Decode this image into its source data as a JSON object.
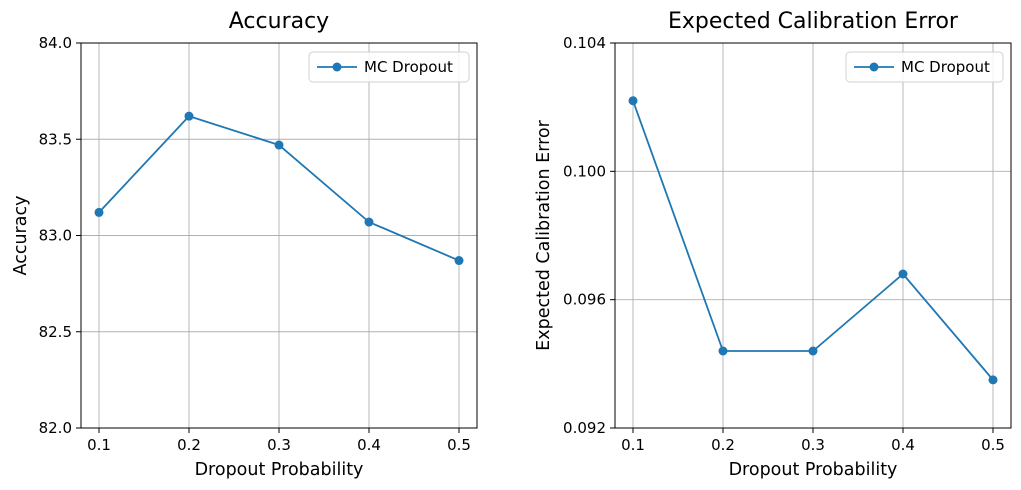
{
  "chart_data": [
    {
      "type": "line",
      "title": "Accuracy",
      "xlabel": "Dropout Probability",
      "ylabel": "Accuracy",
      "x": [
        0.1,
        0.2,
        0.3,
        0.4,
        0.5
      ],
      "xticks": [
        "0.1",
        "0.2",
        "0.3",
        "0.4",
        "0.5"
      ],
      "xlim": [
        0.08,
        0.52
      ],
      "ylim": [
        82.0,
        84.0
      ],
      "yticks": [
        "82.0",
        "82.5",
        "83.0",
        "83.5",
        "84.0"
      ],
      "ytick_values": [
        82.0,
        82.5,
        83.0,
        83.5,
        84.0
      ],
      "grid": true,
      "legend_position": "top-right",
      "series": [
        {
          "name": "MC Dropout",
          "color": "#1f77b4",
          "values": [
            83.12,
            83.62,
            83.47,
            83.07,
            82.87
          ]
        }
      ]
    },
    {
      "type": "line",
      "title": "Expected Calibration Error",
      "xlabel": "Dropout Probability",
      "ylabel": "Expected Calibration Error",
      "x": [
        0.1,
        0.2,
        0.3,
        0.4,
        0.5
      ],
      "xticks": [
        "0.1",
        "0.2",
        "0.3",
        "0.4",
        "0.5"
      ],
      "xlim": [
        0.08,
        0.52
      ],
      "ylim": [
        0.092,
        0.104
      ],
      "yticks": [
        "0.092",
        "0.096",
        "0.100",
        "0.104"
      ],
      "ytick_values": [
        0.092,
        0.096,
        0.1,
        0.104
      ],
      "grid": true,
      "legend_position": "top-right",
      "series": [
        {
          "name": "MC Dropout",
          "color": "#1f77b4",
          "values": [
            0.1022,
            0.0944,
            0.0944,
            0.0968,
            0.0935
          ]
        }
      ]
    }
  ]
}
